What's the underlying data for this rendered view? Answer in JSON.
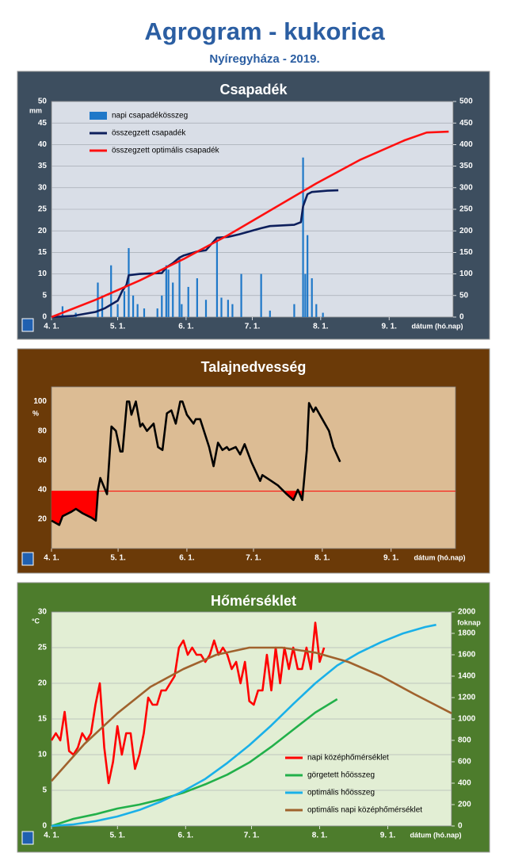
{
  "title": "Agrogram - kukorica",
  "subtitle": "Nyíregyháza - 2019.",
  "chart_data": [
    {
      "type": "combo",
      "title": "Csapadék",
      "xlabel": "dátum (hó.nap)",
      "ylabel": "mm",
      "background": "#3d4e5f",
      "plot_background": "#d9dee7",
      "grid": true,
      "legend": "upper left",
      "xlim": [
        0,
        182
      ],
      "xticks": [
        {
          "value": 0,
          "label": "4. 1."
        },
        {
          "value": 30,
          "label": "5. 1."
        },
        {
          "value": 61,
          "label": "6. 1."
        },
        {
          "value": 91,
          "label": "7. 1."
        },
        {
          "value": 122,
          "label": "8. 1."
        },
        {
          "value": 153,
          "label": "9. 1."
        }
      ],
      "ylim": [
        0,
        50
      ],
      "yticks": [
        0,
        5,
        10,
        15,
        20,
        25,
        30,
        35,
        40,
        45,
        50
      ],
      "y2lim": [
        0,
        500
      ],
      "y2ticks": [
        0,
        50,
        100,
        150,
        200,
        250,
        300,
        350,
        400,
        450,
        500
      ],
      "series": [
        {
          "name": "napi csapadékösszeg",
          "kind": "bar",
          "color": "#1f78c8",
          "x": [
            5,
            11,
            21,
            23,
            27,
            30,
            33,
            35,
            37,
            39,
            42,
            48,
            50,
            52,
            53,
            55,
            58,
            59,
            62,
            66,
            70,
            75,
            77,
            80,
            82,
            86,
            95,
            99,
            110,
            114,
            115,
            116,
            118,
            120,
            123
          ],
          "values": [
            2.5,
            1,
            8,
            5,
            12,
            3,
            6,
            16,
            5,
            3,
            2,
            2,
            5,
            12,
            11,
            8,
            14,
            3,
            7,
            9,
            4,
            18,
            4.5,
            4,
            3,
            10,
            10,
            1.5,
            3,
            37,
            10,
            19,
            9,
            3,
            1
          ]
        },
        {
          "name": "összegzett csapadék",
          "kind": "line",
          "axis": "y2",
          "color": "#0d1f5c",
          "x": [
            0,
            10,
            20,
            24,
            30,
            32,
            34,
            35,
            40,
            50,
            52,
            55,
            58,
            60,
            66,
            70,
            75,
            80,
            85,
            95,
            99,
            110,
            113,
            114,
            116,
            118,
            125,
            130
          ],
          "values": [
            0,
            3,
            12,
            20,
            38,
            60,
            75,
            97,
            100,
            102,
            115,
            125,
            138,
            143,
            152,
            155,
            184,
            186,
            192,
            206,
            211,
            214,
            220,
            257,
            285,
            290,
            293,
            294
          ]
        },
        {
          "name": "összegzett optimális csapadék",
          "kind": "line",
          "axis": "y2",
          "color": "#ff1010",
          "x": [
            0,
            20,
            40,
            60,
            80,
            100,
            120,
            140,
            160,
            170,
            180
          ],
          "values": [
            0,
            40,
            85,
            135,
            190,
            250,
            310,
            365,
            410,
            428,
            430
          ]
        }
      ]
    },
    {
      "type": "line",
      "title": "Talajnedvesség",
      "xlabel": "dátum (hó.nap)",
      "ylabel": "%",
      "background": "#6b3a08",
      "plot_background": "#dcbc94",
      "grid": false,
      "xlim": [
        0,
        182
      ],
      "xticks": [
        {
          "value": 0,
          "label": "4. 1."
        },
        {
          "value": 30,
          "label": "5. 1."
        },
        {
          "value": 61,
          "label": "6. 1."
        },
        {
          "value": 91,
          "label": "7. 1."
        },
        {
          "value": 122,
          "label": "8. 1."
        },
        {
          "value": 153,
          "label": "9. 1."
        }
      ],
      "ylim": [
        0,
        110
      ],
      "yticks": [
        20,
        40,
        60,
        80,
        100
      ],
      "threshold": 39,
      "threshold_color": "#ff0000",
      "series": [
        {
          "kind": "line",
          "color": "#000000",
          "x": [
            0,
            3.5,
            5,
            9,
            11,
            14,
            18,
            20,
            21,
            22,
            25,
            27,
            29,
            31,
            32,
            34,
            35,
            36,
            38,
            40,
            41,
            43,
            46,
            48,
            50,
            52,
            54,
            56,
            58,
            59,
            61,
            64,
            65,
            67,
            71,
            73,
            75,
            77,
            79,
            80,
            83,
            85,
            87,
            90,
            94,
            95,
            99,
            102,
            106,
            109,
            111,
            113,
            115,
            116,
            118,
            119,
            122,
            125,
            127,
            130
          ],
          "values": [
            19,
            16,
            22,
            25,
            27,
            24,
            21,
            19,
            40,
            48,
            37,
            83,
            80,
            66,
            66,
            100,
            100,
            91,
            100,
            83,
            85,
            80,
            85,
            69,
            67,
            92,
            94,
            85,
            100,
            100,
            91,
            85,
            88,
            88,
            69,
            56,
            72,
            67,
            69,
            67,
            69,
            64,
            71,
            59,
            46,
            50,
            46,
            43,
            37,
            33,
            40,
            33,
            67,
            99,
            93,
            96,
            88,
            80,
            69,
            59
          ]
        }
      ]
    },
    {
      "type": "line",
      "title": "Hőmérséklet",
      "xlabel": "dátum (hó.nap)",
      "ylabel": "°C",
      "y2label": "foknap",
      "background": "#4d7c2c",
      "plot_background": "#e2eed4",
      "grid": true,
      "legend": "lower right",
      "xlim": [
        0,
        182
      ],
      "xticks": [
        {
          "value": 0,
          "label": "4. 1."
        },
        {
          "value": 30,
          "label": "5. 1."
        },
        {
          "value": 61,
          "label": "6. 1."
        },
        {
          "value": 91,
          "label": "7. 1."
        },
        {
          "value": 122,
          "label": "8. 1."
        },
        {
          "value": 153,
          "label": "9. 1."
        }
      ],
      "ylim": [
        0,
        30
      ],
      "yticks": [
        0,
        5,
        10,
        15,
        20,
        25,
        30
      ],
      "y2lim": [
        0,
        2000
      ],
      "y2ticks": [
        0,
        200,
        400,
        600,
        800,
        1000,
        1200,
        1400,
        1600,
        1800,
        2000
      ],
      "series": [
        {
          "name": "napi középhőmérséklet",
          "kind": "line",
          "color": "#ff0000",
          "x": [
            0,
            2,
            4,
            6,
            8,
            10,
            12,
            14,
            16,
            18,
            20,
            22,
            24,
            26,
            28,
            30,
            32,
            34,
            36,
            38,
            40,
            42,
            44,
            46,
            48,
            50,
            52,
            54,
            56,
            58,
            60,
            62,
            64,
            66,
            68,
            70,
            72,
            74,
            76,
            78,
            80,
            82,
            84,
            86,
            88,
            90,
            92,
            94,
            96,
            98,
            100,
            102,
            104,
            106,
            108,
            110,
            112,
            114,
            116,
            118,
            120,
            122,
            124
          ],
          "values": [
            12,
            13,
            12,
            16,
            10.5,
            10,
            11,
            13,
            12,
            13,
            17,
            20,
            11,
            6,
            9,
            14,
            10,
            13,
            13,
            8,
            10,
            13,
            18,
            17,
            17,
            19,
            19,
            20,
            21,
            25,
            26,
            24,
            25,
            24,
            24,
            23,
            24,
            26,
            24,
            25,
            24,
            22,
            23,
            20,
            23,
            17.5,
            17,
            19,
            19,
            24,
            19,
            25,
            20,
            25,
            22,
            25,
            22,
            22,
            25,
            22,
            28.5,
            23,
            25
          ]
        },
        {
          "name": "görgetett hőösszeg",
          "kind": "line",
          "axis": "y2",
          "color": "#22b04a",
          "x": [
            0,
            10,
            20,
            30,
            40,
            50,
            60,
            70,
            80,
            90,
            100,
            110,
            120,
            130
          ],
          "values": [
            0,
            67,
            110,
            163,
            200,
            250,
            311,
            390,
            480,
            593,
            740,
            900,
            1060,
            1185
          ]
        },
        {
          "name": "optimális hőösszeg",
          "kind": "line",
          "axis": "y2",
          "color": "#1ab0e8",
          "x": [
            0,
            10,
            20,
            30,
            40,
            50,
            60,
            70,
            80,
            90,
            100,
            110,
            120,
            130,
            140,
            150,
            160,
            170,
            175
          ],
          "values": [
            0,
            15,
            45,
            89,
            150,
            230,
            326,
            440,
            590,
            755,
            940,
            1140,
            1333,
            1500,
            1620,
            1718,
            1800,
            1859,
            1880
          ]
        },
        {
          "name": "optimális napi középhőmérséklet",
          "kind": "line",
          "color": "#a0622d",
          "x": [
            0,
            15,
            30,
            45,
            60,
            75,
            90,
            105,
            120,
            135,
            150,
            165,
            182
          ],
          "values": [
            6.3,
            11.5,
            15.8,
            19.5,
            22,
            24,
            25,
            25,
            24.3,
            23,
            21,
            18.5,
            15.8
          ]
        }
      ]
    }
  ]
}
